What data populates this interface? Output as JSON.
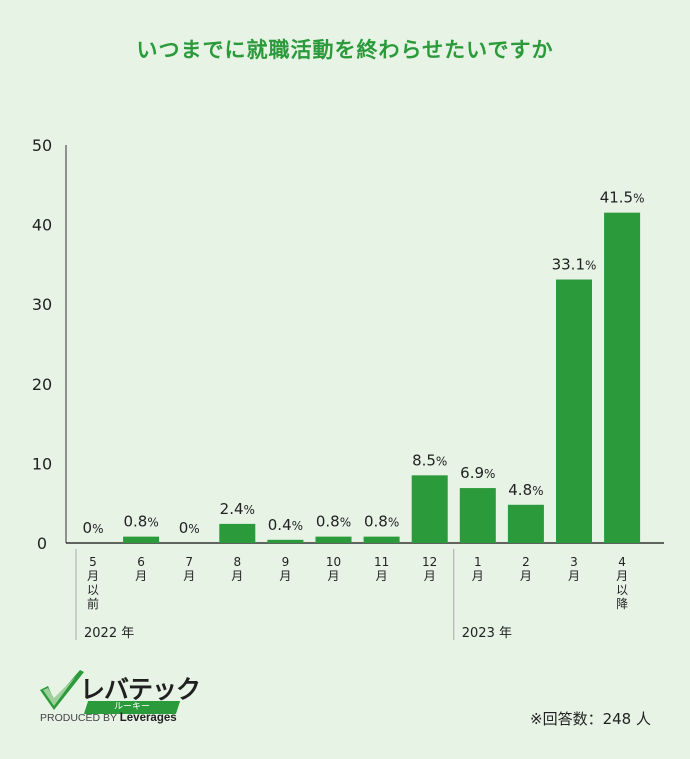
{
  "title": "いつまでに就職活動を終わらせたいですか",
  "chart_data": {
    "type": "bar",
    "title": "いつまでに就職活動を終わらせたいですか",
    "categories": [
      "5月以前",
      "6月",
      "7月",
      "8月",
      "9月",
      "10月",
      "11月",
      "12月",
      "1月",
      "2月",
      "3月",
      "4月以降"
    ],
    "category_tick_lines": [
      [
        "5",
        "月",
        "以",
        "前"
      ],
      [
        "6",
        "月"
      ],
      [
        "7",
        "月"
      ],
      [
        "8",
        "月"
      ],
      [
        "9",
        "月"
      ],
      [
        "10",
        "月"
      ],
      [
        "11",
        "月"
      ],
      [
        "12",
        "月"
      ],
      [
        "1",
        "月"
      ],
      [
        "2",
        "月"
      ],
      [
        "3",
        "月"
      ],
      [
        "4",
        "月",
        "以",
        "降"
      ]
    ],
    "values": [
      0,
      0.8,
      0,
      2.4,
      0.4,
      0.8,
      0.8,
      8.5,
      6.9,
      4.8,
      33.1,
      41.5
    ],
    "data_labels": [
      "0",
      "0.8",
      "0",
      "2.4",
      "0.4",
      "0.8",
      "0.8",
      "8.5",
      "6.9",
      "4.8",
      "33.1",
      "41.5"
    ],
    "data_label_suffix": "%",
    "ylim": [
      0,
      50
    ],
    "yticks": [
      "0",
      "10",
      "20",
      "30",
      "40",
      "50"
    ],
    "year_groups": [
      {
        "label": "2022 年",
        "start_index": 0,
        "end_index": 7
      },
      {
        "label": "2023 年",
        "start_index": 8,
        "end_index": 11
      }
    ],
    "bar_color": "#2a9a3a",
    "grid": false
  },
  "logo": {
    "brand": "レバテック",
    "sub": "ルーキー",
    "produced_by": "PRODUCED BY",
    "company": "Leverages"
  },
  "respondents": "※回答数：248 人",
  "colors": {
    "background": "#e6f3e5",
    "accent": "#2a9a3a"
  }
}
